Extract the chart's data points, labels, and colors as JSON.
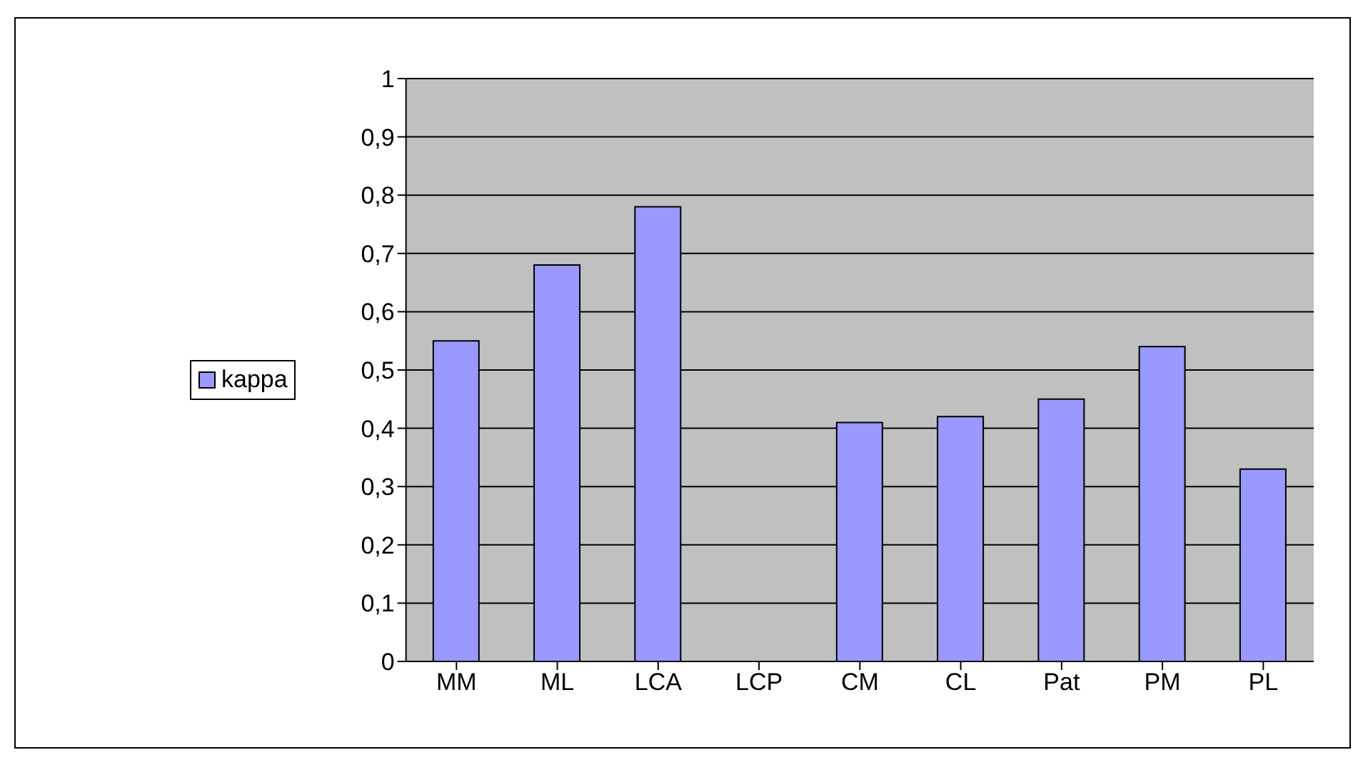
{
  "chart_data": {
    "type": "bar",
    "categories": [
      "MM",
      "ML",
      "LCA",
      "LCP",
      "CM",
      "CL",
      "Pat",
      "PM",
      "PL"
    ],
    "series": [
      {
        "name": "kappa",
        "color": "#9999ff",
        "values": [
          0.55,
          0.68,
          0.78,
          null,
          0.41,
          0.42,
          0.45,
          0.54,
          0.33
        ]
      }
    ],
    "ylim": [
      0,
      1
    ],
    "yticks": [
      0,
      {
        "value": 0.1,
        "label": "0,1"
      },
      {
        "value": 0.2,
        "label": "0,2"
      },
      {
        "value": 0.3,
        "label": "0,3"
      },
      {
        "value": 0.4,
        "label": "0,4"
      },
      {
        "value": 0.5,
        "label": "0,5"
      },
      {
        "value": 0.6,
        "label": "0,6"
      },
      {
        "value": 0.7,
        "label": "0,7"
      },
      {
        "value": 0.8,
        "label": "0,8"
      },
      {
        "value": 0.9,
        "label": "0,9"
      },
      1
    ],
    "grid": "y",
    "legend": "left"
  }
}
